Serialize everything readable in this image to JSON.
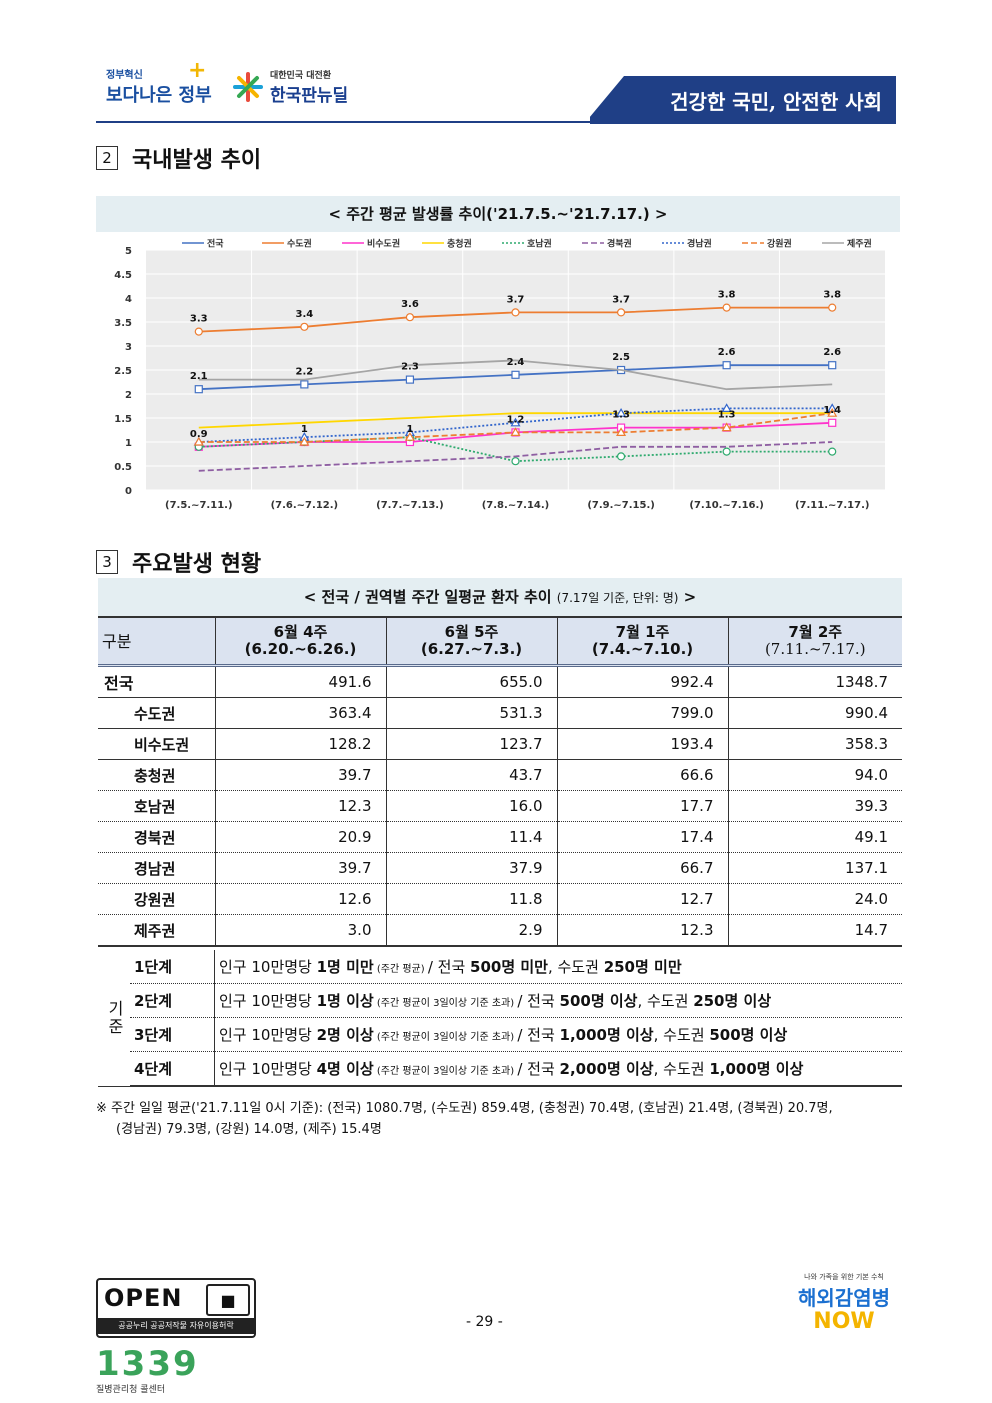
{
  "header": {
    "logo1_small": "정부혁신",
    "logo1_big": "보다나은 정부",
    "logo2_small": "대한민국 대전환",
    "logo2_big": "한국판뉴딜",
    "slogan": "건강한 국민, 안전한 사회"
  },
  "section2": {
    "num": "2",
    "title": "국내발생 추이",
    "caption": "< 주간 평균 발생률 추이('21.7.5.~'21.7.17.) >"
  },
  "chart_data": {
    "type": "line",
    "categories": [
      "(7.5.~7.11.)",
      "(7.6.~7.12.)",
      "(7.7.~7.13.)",
      "(7.8.~7.14.)",
      "(7.9.~7.15.)",
      "(7.10.~7.16.)",
      "(7.11.~7.17.)"
    ],
    "ylim": [
      0,
      5
    ],
    "yticks": [
      "0",
      "0.5",
      "1",
      "1.5",
      "2",
      "2.5",
      "3",
      "3.5",
      "4",
      "4.5",
      "5"
    ],
    "grid": true,
    "legend": "top",
    "series": [
      {
        "name": "전국",
        "color": "#4472c4",
        "marker": "square",
        "dash": "",
        "values": [
          2.1,
          2.2,
          2.3,
          2.4,
          2.5,
          2.6,
          2.6
        ],
        "labels": [
          "2.1",
          "2.2",
          "2.3",
          "2.4",
          "2.5",
          "2.6",
          "2.6"
        ]
      },
      {
        "name": "수도권",
        "color": "#ed7d31",
        "marker": "circle",
        "dash": "",
        "values": [
          3.3,
          3.4,
          3.6,
          3.7,
          3.7,
          3.8,
          3.8
        ],
        "labels": [
          "3.3",
          "3.4",
          "3.6",
          "3.7",
          "3.7",
          "3.8",
          "3.8"
        ]
      },
      {
        "name": "비수도권",
        "color": "#ff33cc",
        "marker": "square",
        "dash": "",
        "values": [
          0.9,
          1.0,
          1.0,
          1.2,
          1.3,
          1.3,
          1.4
        ],
        "labels": [
          "0.9",
          "1",
          "1",
          "1.2",
          "1.3",
          "1.3",
          "1.4"
        ]
      },
      {
        "name": "충청권",
        "color": "#ffd700",
        "marker": "none",
        "dash": "",
        "values": [
          1.3,
          1.4,
          1.5,
          1.6,
          1.6,
          1.6,
          1.6
        ],
        "labels": []
      },
      {
        "name": "호남권",
        "color": "#2eaa6e",
        "marker": "circle",
        "dash": "2,2",
        "values": [
          0.9,
          1.0,
          1.1,
          0.6,
          0.7,
          0.8,
          0.8
        ],
        "labels": []
      },
      {
        "name": "경북권",
        "color": "#8e5ea2",
        "marker": "none",
        "dash": "6,3",
        "values": [
          0.4,
          0.5,
          0.6,
          0.7,
          0.9,
          0.9,
          1.0
        ],
        "labels": []
      },
      {
        "name": "경남권",
        "color": "#3366cc",
        "marker": "triangle",
        "dash": "2,2",
        "values": [
          1.0,
          1.1,
          1.2,
          1.4,
          1.6,
          1.7,
          1.7
        ],
        "labels": []
      },
      {
        "name": "강원권",
        "color": "#ed7d31",
        "marker": "triangle",
        "dash": "6,3",
        "values": [
          1.0,
          1.0,
          1.1,
          1.2,
          1.2,
          1.3,
          1.6
        ],
        "labels": []
      },
      {
        "name": "제주권",
        "color": "#a5a5a5",
        "marker": "none",
        "dash": "",
        "values": [
          2.3,
          2.3,
          2.6,
          2.7,
          2.5,
          2.1,
          2.2
        ],
        "labels": []
      }
    ]
  },
  "section3": {
    "num": "3",
    "title": "주요발생 현황",
    "caption_main": "< 전국 / 권역별 주간 일평균 환자 추이",
    "caption_small": "(7.17일 기준, 단위: 명)",
    "caption_end": ">"
  },
  "table": {
    "corner": "구분",
    "headers": [
      {
        "l1": "6월 4주",
        "l2": "(6.20.~6.26.)"
      },
      {
        "l1": "6월 5주",
        "l2": "(6.27.~7.3.)"
      },
      {
        "l1": "7월 1주",
        "l2": "(7.4.~7.10.)"
      },
      {
        "l1": "7월 2주",
        "l2": "(7.11.~7.17.)"
      }
    ],
    "rows": [
      {
        "name": "전국",
        "v": [
          "491.6",
          "655.0",
          "992.4",
          "1348.7"
        ]
      },
      {
        "name": "수도권",
        "v": [
          "363.4",
          "531.3",
          "799.0",
          "990.4"
        ]
      },
      {
        "name": "비수도권",
        "v": [
          "128.2",
          "123.7",
          "193.4",
          "358.3"
        ]
      },
      {
        "name": "충청권",
        "v": [
          "39.7",
          "43.7",
          "66.6",
          "94.0"
        ]
      },
      {
        "name": "호남권",
        "v": [
          "12.3",
          "16.0",
          "17.7",
          "39.3"
        ]
      },
      {
        "name": "경북권",
        "v": [
          "20.9",
          "11.4",
          "17.4",
          "49.1"
        ]
      },
      {
        "name": "경남권",
        "v": [
          "39.7",
          "37.9",
          "66.7",
          "137.1"
        ]
      },
      {
        "name": "강원권",
        "v": [
          "12.6",
          "11.8",
          "12.7",
          "24.0"
        ]
      },
      {
        "name": "제주권",
        "v": [
          "3.0",
          "2.9",
          "12.3",
          "14.7"
        ]
      }
    ]
  },
  "criteria": {
    "label": "기준",
    "levels": [
      {
        "name": "1단계",
        "a": "인구 10만명당 ",
        "b": "1명 미만",
        "c": " (주간 평균) ",
        "d": "/ 전국 ",
        "e": "500명 미만",
        "f": ", 수도권 ",
        "g": "250명 미만"
      },
      {
        "name": "2단계",
        "a": "인구 10만명당 ",
        "b": "1명 이상",
        "c": " (주간 평균이 3일이상 기준 초과) ",
        "d": "/ 전국 ",
        "e": "500명 이상",
        "f": ", 수도권 ",
        "g": "250명 이상"
      },
      {
        "name": "3단계",
        "a": "인구 10만명당 ",
        "b": "2명 이상",
        "c": " (주간 평균이 3일이상 기준 초과) ",
        "d": "/ 전국 ",
        "e": "1,000명 이상",
        "f": ", 수도권 ",
        "g": "500명 이상"
      },
      {
        "name": "4단계",
        "a": "인구 10만명당 ",
        "b": "4명 이상",
        "c": " (주간 평균이 3일이상 기준 초과) ",
        "d": "/ 전국 ",
        "e": "2,000명 이상",
        "f": ", 수도권 ",
        "g": "1,000명 이상"
      }
    ]
  },
  "note": {
    "line1": "※ 주간 일일 평균('21.7.11일 0시 기준): (전국) 1080.7명, (수도권) 859.4명, (충청권) 70.4명, (호남권) 21.4명, (경북권) 20.7명,",
    "line2": "(경남권) 79.3명, (강원) 14.0명, (제주) 15.4명"
  },
  "footer": {
    "open": "OPEN",
    "open_sub": "공공누리  공공저작물 자유이용허락",
    "page": "- 29 -",
    "call_num": "1339",
    "call_label": "질병관리청 콜센터",
    "overseas_top": "나와 가족을 위한 기본 수칙",
    "overseas_main": "해외감염병",
    "overseas_now": "NOW"
  }
}
